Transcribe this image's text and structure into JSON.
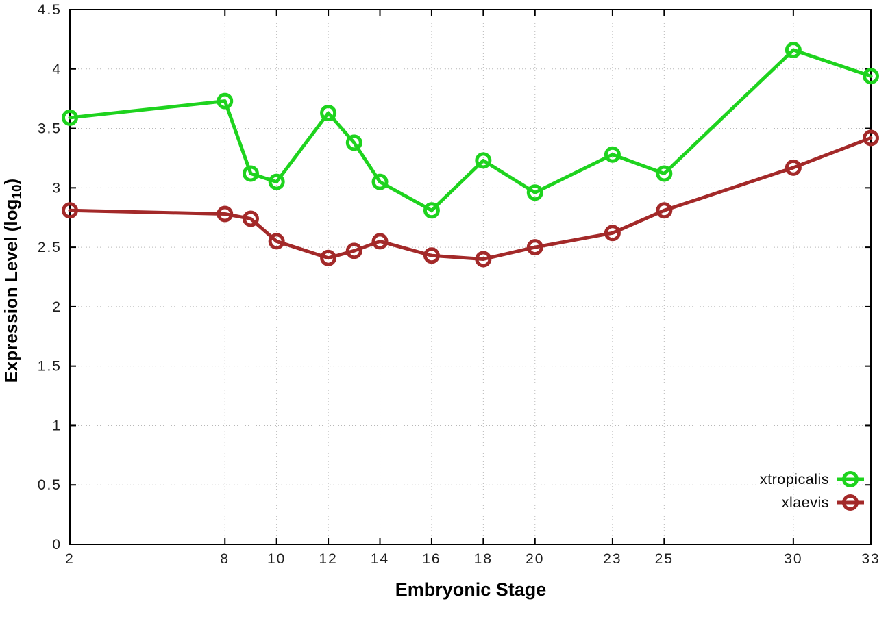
{
  "chart_data": {
    "type": "line",
    "title": "",
    "xlabel": "Embryonic Stage",
    "ylabel_prefix": "Expression Level (log",
    "ylabel_sub": "10",
    "ylabel_suffix": ")",
    "xlim": [
      2,
      33
    ],
    "ylim": [
      0,
      4.5
    ],
    "xticks": [
      2,
      8,
      10,
      12,
      14,
      16,
      18,
      20,
      23,
      25,
      30,
      33
    ],
    "yticks": [
      0,
      0.5,
      1,
      1.5,
      2,
      2.5,
      3,
      3.5,
      4,
      4.5
    ],
    "grid": true,
    "legend_position": "bottom-right",
    "x": [
      2,
      8,
      9,
      10,
      12,
      13,
      14,
      16,
      18,
      20,
      23,
      25,
      30,
      33
    ],
    "series": [
      {
        "name": "xtropicalis",
        "color": "#1ed31e",
        "values": [
          3.59,
          3.73,
          3.12,
          3.05,
          3.63,
          3.38,
          3.05,
          2.81,
          3.23,
          2.96,
          3.28,
          3.12,
          4.16,
          3.94
        ]
      },
      {
        "name": "xlaevis",
        "color": "#a32929",
        "values": [
          2.81,
          2.78,
          2.74,
          2.55,
          2.41,
          2.47,
          2.55,
          2.43,
          2.4,
          2.5,
          2.62,
          2.81,
          3.17,
          3.42
        ]
      }
    ],
    "colors": {
      "border": "#000000",
      "grid": "#b8b8b8",
      "tick_text": "#1e1e1e",
      "background": "#ffffff"
    }
  }
}
